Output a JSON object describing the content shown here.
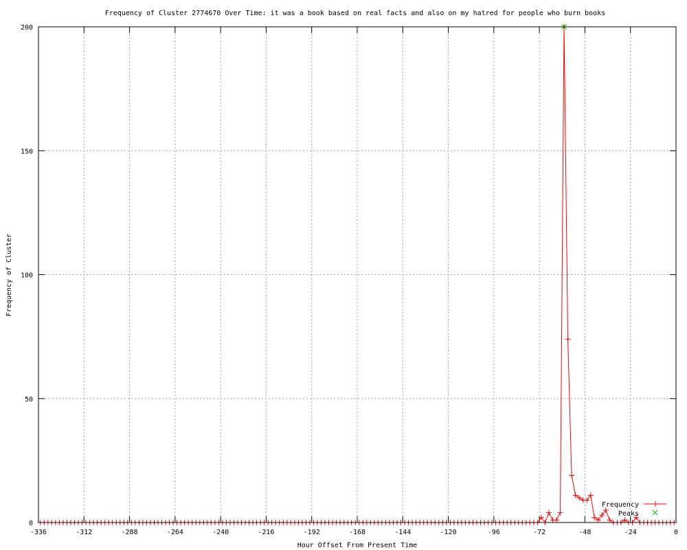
{
  "chart_data": {
    "type": "line",
    "title": "Frequency of Cluster 2774670 Over Time: it was a book based on real facts and also on my hatred for people who burn books",
    "xlabel": "Hour Offset From Present Time",
    "ylabel": "Frequency of Cluster",
    "xlim": [
      -336,
      0
    ],
    "ylim": [
      0,
      200
    ],
    "xticks": [
      -336,
      -312,
      -288,
      -264,
      -240,
      -216,
      -192,
      -168,
      -144,
      -120,
      -96,
      -72,
      -48,
      -24,
      0
    ],
    "yticks": [
      0,
      50,
      100,
      150,
      200
    ],
    "grid": true,
    "legend_position": "bottom-right",
    "colors": {
      "frequency": "#ff0000",
      "peaks": "#00c000",
      "grid": "#a0a0a0"
    },
    "series": [
      {
        "name": "Frequency",
        "x_start": -335,
        "x_step": 2,
        "x_end": -1,
        "nonzero_points": [
          [
            -71,
            2
          ],
          [
            -67,
            4
          ],
          [
            -65,
            1
          ],
          [
            -63,
            1
          ],
          [
            -61,
            4
          ],
          [
            -59,
            200
          ],
          [
            -57,
            74
          ],
          [
            -55,
            19
          ],
          [
            -53,
            11
          ],
          [
            -51,
            10
          ],
          [
            -49,
            9
          ],
          [
            -47,
            9
          ],
          [
            -45,
            11
          ],
          [
            -43,
            2
          ],
          [
            -41,
            1
          ],
          [
            -39,
            3
          ],
          [
            -37,
            5
          ],
          [
            -35,
            1
          ],
          [
            -27,
            1
          ],
          [
            -21,
            2
          ]
        ]
      },
      {
        "name": "Peaks",
        "points": [
          [
            -59,
            200
          ]
        ]
      }
    ]
  }
}
